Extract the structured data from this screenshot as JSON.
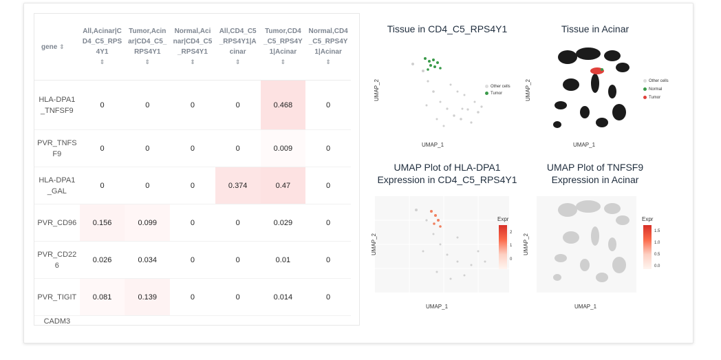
{
  "table": {
    "headers": [
      {
        "label": "gene",
        "sort": "⇕"
      },
      {
        "label": "All,Acinar|CD4_C5_RPS4Y1",
        "sort": "⇕"
      },
      {
        "label": "Tumor,Acinar|CD4_C5_RPS4Y1",
        "sort": "⇕"
      },
      {
        "label": "Normal,Acinar|CD4_C5_RPS4Y1",
        "sort": "⇕"
      },
      {
        "label": "All,CD4_C5_RPS4Y1|Acinar",
        "sort": "⇕"
      },
      {
        "label": "Tumor,CD4_C5_RPS4Y1|Acinar",
        "sort": "⇕"
      },
      {
        "label": "Normal,CD4_C5_RPS4Y1|Acinar",
        "sort": "⇕"
      }
    ],
    "rows": [
      {
        "gene": "HLA-DPA1_TNFSF9",
        "values": [
          "0",
          "0",
          "0",
          "0",
          "0.468",
          "0"
        ]
      },
      {
        "gene": "PVR_TNFSF9",
        "values": [
          "0",
          "0",
          "0",
          "0",
          "0.009",
          "0"
        ]
      },
      {
        "gene": "HLA-DPA1_GAL",
        "values": [
          "0",
          "0",
          "0",
          "0.374",
          "0.47",
          "0"
        ]
      },
      {
        "gene": "PVR_CD96",
        "values": [
          "0.156",
          "0.099",
          "0",
          "0",
          "0.029",
          "0"
        ]
      },
      {
        "gene": "PVR_CD226",
        "values": [
          "0.026",
          "0.034",
          "0",
          "0",
          "0.01",
          "0"
        ]
      },
      {
        "gene": "PVR_TIGIT",
        "values": [
          "0.081",
          "0.139",
          "0",
          "0",
          "0.014",
          "0"
        ]
      },
      {
        "gene": "CADM3",
        "values": [
          "",
          "",
          "",
          "",
          "",
          ""
        ]
      }
    ]
  },
  "plots": {
    "p1": {
      "title": "Tissue in CD4_C5_RPS4Y1",
      "xlabel": "UMAP_1",
      "ylabel": "UMAP_2",
      "legend": [
        {
          "label": "Other cells",
          "color": "#dddddd"
        },
        {
          "label": "Tumor",
          "color": "#3a9a4a"
        }
      ]
    },
    "p2": {
      "title": "Tissue in Acinar",
      "xlabel": "UMAP_1",
      "ylabel": "UMAP_2",
      "legend": [
        {
          "label": "Other cells",
          "color": "#dddddd"
        },
        {
          "label": "Normal",
          "color": "#3a9a4a"
        },
        {
          "label": "Tumor",
          "color": "#e0413b"
        }
      ]
    },
    "p3": {
      "title_line1": "UMAP Plot of HLA-DPA1",
      "title_line2": "Expression in CD4_C5_RPS4Y1",
      "xlabel": "UMAP_1",
      "ylabel": "UMAP_2",
      "legend_title": "Expr",
      "ticks": [
        "2",
        "1",
        "0"
      ]
    },
    "p4": {
      "title_line1": "UMAP Plot of TNFSF9",
      "title_line2": "Expression in Acinar",
      "xlabel": "UMAP_1",
      "ylabel": "UMAP_2",
      "legend_title": "Expr",
      "ticks": [
        "1.5",
        "1.0",
        "0.5",
        "0.0"
      ]
    }
  }
}
